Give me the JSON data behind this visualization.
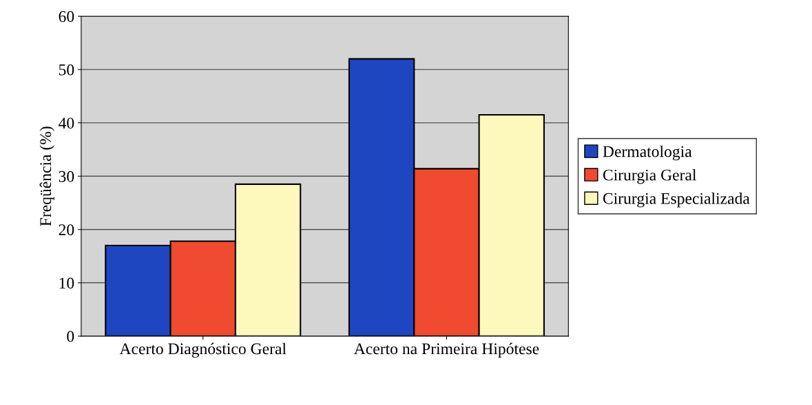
{
  "chart_data": {
    "type": "bar",
    "ylabel": "Freqüência (%)",
    "categories": [
      "Acerto Diagnóstico Geral",
      "Acerto na Primeira Hipótese"
    ],
    "series": [
      {
        "name": "Dermatologia",
        "color": "#1e46c0",
        "values": [
          17.0,
          52.0
        ]
      },
      {
        "name": "Cirurgia Geral",
        "color": "#f04a30",
        "values": [
          17.8,
          31.4
        ]
      },
      {
        "name": "Cirurgia Especializada",
        "color": "#fdf8bc",
        "values": [
          28.5,
          41.5
        ]
      }
    ],
    "ylim": [
      0,
      60
    ],
    "yticks": [
      0,
      10,
      20,
      30,
      40,
      50,
      60
    ],
    "grid": "y",
    "legend": "right"
  }
}
